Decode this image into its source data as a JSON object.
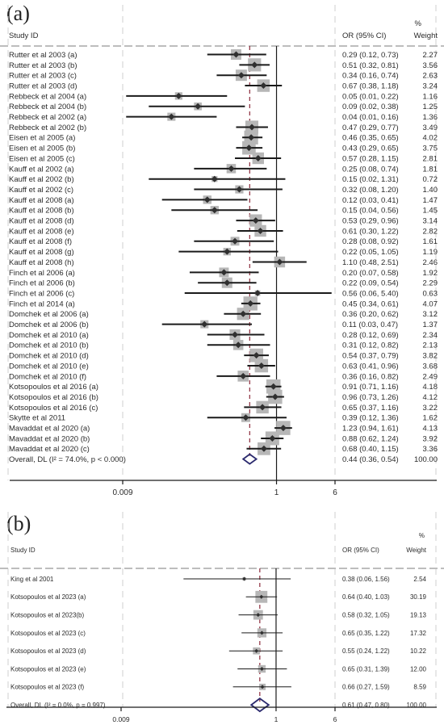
{
  "panels": [
    {
      "label": "(a)",
      "header": {
        "study": "Study ID",
        "or": "OR (95% CI)",
        "pct": "%",
        "weight": "Weight"
      },
      "axis": {
        "scale": "log",
        "ticks": [
          "0.009",
          "1",
          "6"
        ],
        "tick_values": [
          0.009,
          1,
          6
        ]
      },
      "pooled_or": 0.44,
      "studies": [
        {
          "name": "Rutter et al 2003 (a)",
          "or": 0.29,
          "lo": 0.12,
          "hi": 0.73,
          "ci": "0.29 (0.12, 0.73)",
          "weight": "2.27"
        },
        {
          "name": "Rutter et al 2003 (b)",
          "or": 0.51,
          "lo": 0.32,
          "hi": 0.81,
          "ci": "0.51 (0.32, 0.81)",
          "weight": "3.56"
        },
        {
          "name": "Rutter et al 2003 (c)",
          "or": 0.34,
          "lo": 0.16,
          "hi": 0.74,
          "ci": "0.34 (0.16, 0.74)",
          "weight": "2.63"
        },
        {
          "name": "Rutter et al 2003 (d)",
          "or": 0.67,
          "lo": 0.38,
          "hi": 1.18,
          "ci": "0.67 (0.38, 1.18)",
          "weight": "3.24"
        },
        {
          "name": "Rebbeck et al 2004 (a)",
          "or": 0.05,
          "lo": 0.01,
          "hi": 0.22,
          "ci": "0.05 (0.01, 0.22)",
          "weight": "1.16"
        },
        {
          "name": "Rebbeck et al 2004 (b)",
          "or": 0.09,
          "lo": 0.02,
          "hi": 0.38,
          "ci": "0.09 (0.02, 0.38)",
          "weight": "1.25"
        },
        {
          "name": "Rebbeck et al 2002 (a)",
          "or": 0.04,
          "lo": 0.01,
          "hi": 0.16,
          "ci": "0.04 (0.01, 0.16)",
          "weight": "1.36"
        },
        {
          "name": "Rebbeck et al 2002 (b)",
          "or": 0.47,
          "lo": 0.29,
          "hi": 0.77,
          "ci": "0.47 (0.29, 0.77)",
          "weight": "3.49"
        },
        {
          "name": "Eisen et al 2005 (a)",
          "or": 0.46,
          "lo": 0.35,
          "hi": 0.65,
          "ci": "0.46 (0.35, 0.65)",
          "weight": "4.02"
        },
        {
          "name": "Eisen et al 2005 (b)",
          "or": 0.43,
          "lo": 0.29,
          "hi": 0.65,
          "ci": "0.43 (0.29, 0.65)",
          "weight": "3.75"
        },
        {
          "name": "Eisen et al 2005 (c)",
          "or": 0.57,
          "lo": 0.28,
          "hi": 1.15,
          "ci": "0.57 (0.28, 1.15)",
          "weight": "2.81"
        },
        {
          "name": "Kauff et al 2002 (a)",
          "or": 0.25,
          "lo": 0.08,
          "hi": 0.74,
          "ci": "0.25 (0.08, 0.74)",
          "weight": "1.81"
        },
        {
          "name": "Kauff et al 2002 (b)",
          "or": 0.15,
          "lo": 0.02,
          "hi": 1.31,
          "ci": "0.15 (0.02, 1.31)",
          "weight": "0.72"
        },
        {
          "name": "Kauff et al 2002 (c)",
          "or": 0.32,
          "lo": 0.08,
          "hi": 1.2,
          "ci": "0.32 (0.08, 1.20)",
          "weight": "1.40"
        },
        {
          "name": "Kauff et al 2008 (a)",
          "or": 0.12,
          "lo": 0.03,
          "hi": 0.41,
          "ci": "0.12 (0.03, 0.41)",
          "weight": "1.47"
        },
        {
          "name": "Kauff et al 2008 (b)",
          "or": 0.15,
          "lo": 0.04,
          "hi": 0.56,
          "ci": "0.15 (0.04, 0.56)",
          "weight": "1.45"
        },
        {
          "name": "Kauff et al 2008 (d)",
          "or": 0.53,
          "lo": 0.29,
          "hi": 0.96,
          "ci": "0.53 (0.29, 0.96)",
          "weight": "3.14"
        },
        {
          "name": "Kauff et al 2008 (e)",
          "or": 0.61,
          "lo": 0.3,
          "hi": 1.22,
          "ci": "0.61 (0.30, 1.22)",
          "weight": "2.82"
        },
        {
          "name": "Kauff et al 2008 (f)",
          "or": 0.28,
          "lo": 0.08,
          "hi": 0.92,
          "ci": "0.28 (0.08, 0.92)",
          "weight": "1.61"
        },
        {
          "name": "Kauff et al 2008 (g)",
          "or": 0.22,
          "lo": 0.05,
          "hi": 1.05,
          "ci": "0.22 (0.05, 1.05)",
          "weight": "1.19"
        },
        {
          "name": "Kauff et al 2008 (h)",
          "or": 1.1,
          "lo": 0.48,
          "hi": 2.51,
          "ci": "1.10 (0.48, 2.51)",
          "weight": "2.46"
        },
        {
          "name": "Finch et al 2006 (a)",
          "or": 0.2,
          "lo": 0.07,
          "hi": 0.58,
          "ci": "0.20 (0.07, 0.58)",
          "weight": "1.92"
        },
        {
          "name": "Finch et al 2006 (b)",
          "or": 0.22,
          "lo": 0.09,
          "hi": 0.54,
          "ci": "0.22 (0.09, 0.54)",
          "weight": "2.29"
        },
        {
          "name": "Finch et al 2006 (c)",
          "or": 0.56,
          "lo": 0.06,
          "hi": 5.4,
          "ci": "0.56 (0.06, 5.40)",
          "weight": "0.63"
        },
        {
          "name": "Finch et al 2014 (a)",
          "or": 0.45,
          "lo": 0.34,
          "hi": 0.61,
          "ci": "0.45 (0.34, 0.61)",
          "weight": "4.07"
        },
        {
          "name": "Domchek et al 2006 (a)",
          "or": 0.36,
          "lo": 0.2,
          "hi": 0.62,
          "ci": "0.36 (0.20, 0.62)",
          "weight": "3.12"
        },
        {
          "name": "Domchek et al 2006 (b)",
          "or": 0.11,
          "lo": 0.03,
          "hi": 0.47,
          "ci": "0.11 (0.03, 0.47)",
          "weight": "1.37"
        },
        {
          "name": "Domchek et al 2010 (a)",
          "or": 0.28,
          "lo": 0.12,
          "hi": 0.69,
          "ci": "0.28 (0.12, 0.69)",
          "weight": "2.34"
        },
        {
          "name": "Domchek et al 2010 (b)",
          "or": 0.31,
          "lo": 0.12,
          "hi": 0.82,
          "ci": "0.31 (0.12, 0.82)",
          "weight": "2.13"
        },
        {
          "name": "Domchek et al 2010 (d)",
          "or": 0.54,
          "lo": 0.37,
          "hi": 0.79,
          "ci": "0.54 (0.37, 0.79)",
          "weight": "3.82"
        },
        {
          "name": "Domchek et al 2010 (e)",
          "or": 0.63,
          "lo": 0.41,
          "hi": 0.96,
          "ci": "0.63 (0.41, 0.96)",
          "weight": "3.68"
        },
        {
          "name": "Domchek et al 2010 (f)",
          "or": 0.36,
          "lo": 0.16,
          "hi": 0.82,
          "ci": "0.36 (0.16, 0.82)",
          "weight": "2.49"
        },
        {
          "name": "Kotsopoulos et al 2016 (a)",
          "or": 0.91,
          "lo": 0.71,
          "hi": 1.16,
          "ci": "0.91 (0.71, 1.16)",
          "weight": "4.18"
        },
        {
          "name": "Kotsopoulos et al 2016 (b)",
          "or": 0.96,
          "lo": 0.73,
          "hi": 1.26,
          "ci": "0.96 (0.73, 1.26)",
          "weight": "4.12"
        },
        {
          "name": "Kotsopoulos et al 2016 (c)",
          "or": 0.65,
          "lo": 0.37,
          "hi": 1.16,
          "ci": "0.65 (0.37, 1.16)",
          "weight": "3.22"
        },
        {
          "name": "Skytte et al 2011",
          "or": 0.39,
          "lo": 0.12,
          "hi": 1.36,
          "ci": "0.39 (0.12, 1.36)",
          "weight": "1.62"
        },
        {
          "name": "Mavaddat et al 2020 (a)",
          "or": 1.23,
          "lo": 0.94,
          "hi": 1.61,
          "ci": "1.23 (0.94, 1.61)",
          "weight": "4.13"
        },
        {
          "name": "Mavaddat et al 2020 (b)",
          "or": 0.88,
          "lo": 0.62,
          "hi": 1.24,
          "ci": "0.88 (0.62, 1.24)",
          "weight": "3.92"
        },
        {
          "name": "Mavaddat et al 2020 (c)",
          "or": 0.68,
          "lo": 0.4,
          "hi": 1.15,
          "ci": "0.68 (0.40, 1.15)",
          "weight": "3.36"
        }
      ],
      "overall": {
        "name": "Overall, DL (I² = 74.0%, p < 0.000)",
        "or": 0.44,
        "lo": 0.36,
        "hi": 0.54,
        "ci": "0.44 (0.36, 0.54)",
        "weight": "100.00"
      }
    },
    {
      "label": "(b)",
      "header": {
        "study": "Study ID",
        "or": "OR (95% CI)",
        "pct": "%",
        "weight": "Weight"
      },
      "axis": {
        "scale": "log",
        "ticks": [
          "0.009",
          "1",
          "6"
        ],
        "tick_values": [
          0.009,
          1,
          6
        ]
      },
      "pooled_or": 0.61,
      "studies": [
        {
          "name": "King et al 2001",
          "or": 0.38,
          "lo": 0.06,
          "hi": 1.56,
          "ci": "0.38 (0.06, 1.56)",
          "weight": "2.54"
        },
        {
          "name": "Kotsopoulos et al 2023 (a)",
          "or": 0.64,
          "lo": 0.4,
          "hi": 1.03,
          "ci": "0.64 (0.40, 1.03)",
          "weight": "30.19"
        },
        {
          "name": "Kotsopoulos et al 2023(b)",
          "or": 0.58,
          "lo": 0.32,
          "hi": 1.05,
          "ci": "0.58 (0.32, 1.05)",
          "weight": "19.13"
        },
        {
          "name": "Kotsopoulos et al 2023 (c)",
          "or": 0.65,
          "lo": 0.35,
          "hi": 1.22,
          "ci": "0.65 (0.35, 1.22)",
          "weight": "17.32"
        },
        {
          "name": "Kotsopoulos et al 2023 (d)",
          "or": 0.55,
          "lo": 0.24,
          "hi": 1.22,
          "ci": "0.55 (0.24, 1.22)",
          "weight": "10.22"
        },
        {
          "name": "Kotsopoulos et al 2023 (e)",
          "or": 0.65,
          "lo": 0.31,
          "hi": 1.39,
          "ci": "0.65 (0.31, 1.39)",
          "weight": "12.00"
        },
        {
          "name": "Kotsopoulos et al 2023 (f)",
          "or": 0.66,
          "lo": 0.27,
          "hi": 1.59,
          "ci": "0.66 (0.27, 1.59)",
          "weight": "8.59"
        }
      ],
      "overall": {
        "name": "Overall, DL (I² = 0.0%, p = 0.997)",
        "or": 0.61,
        "lo": 0.47,
        "hi": 0.8,
        "ci": "0.61 (0.47, 0.80)",
        "weight": "100.00"
      }
    }
  ],
  "chart_data": [
    {
      "type": "scatter",
      "title": "(a)",
      "xscale": "log",
      "x_ticks": [
        0.009,
        1,
        6
      ],
      "ylabel": "Study ID",
      "series": [
        {
          "name": "OR (95% CI)",
          "values": [
            0.29,
            0.51,
            0.34,
            0.67,
            0.05,
            0.09,
            0.04,
            0.47,
            0.46,
            0.43,
            0.57,
            0.25,
            0.15,
            0.32,
            0.12,
            0.15,
            0.53,
            0.61,
            0.28,
            0.22,
            1.1,
            0.2,
            0.22,
            0.56,
            0.45,
            0.36,
            0.11,
            0.28,
            0.31,
            0.54,
            0.63,
            0.36,
            0.91,
            0.96,
            0.65,
            0.39,
            1.23,
            0.88,
            0.68
          ]
        }
      ],
      "overall": 0.44
    },
    {
      "type": "scatter",
      "title": "(b)",
      "xscale": "log",
      "x_ticks": [
        0.009,
        1,
        6
      ],
      "ylabel": "Study ID",
      "series": [
        {
          "name": "OR (95% CI)",
          "values": [
            0.38,
            0.64,
            0.58,
            0.65,
            0.55,
            0.65,
            0.66
          ]
        }
      ],
      "overall": 0.61
    }
  ],
  "colors": {
    "ci_line": "#1a1a1a",
    "weight_box": "#b7b7b7",
    "point": "#303030",
    "pooled_dash": "#8b2a3a",
    "diamond": "#2b2a6e",
    "dashed_grid": "#cfcfcf",
    "header_rule": "#bdbdbd"
  }
}
